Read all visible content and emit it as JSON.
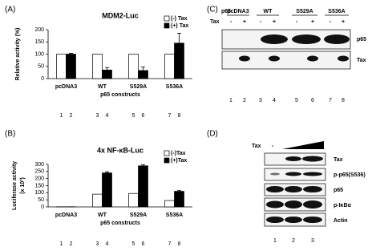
{
  "chart_data": [
    {
      "type": "bar",
      "panel_label": "(A)",
      "title": "MDM2-Luc",
      "y_label": "Relative activity (%)",
      "x_label": "p65 constructs",
      "categories": [
        "pcDNA3",
        "WT",
        "S529A",
        "S536A"
      ],
      "series": [
        {
          "name": "(-) Tax",
          "color": "#ffffff",
          "values": [
            100,
            100,
            100,
            100
          ]
        },
        {
          "name": "(+) Tax",
          "color": "#000000",
          "values": [
            100,
            35,
            33,
            145
          ],
          "errors": [
            3,
            10,
            15,
            40
          ]
        }
      ],
      "ylim": [
        0,
        200
      ],
      "yticks": [
        0,
        50,
        100,
        150,
        200
      ],
      "legend": "upper right",
      "lane_numbers": [
        1,
        2,
        3,
        4,
        5,
        6,
        7,
        8
      ]
    },
    {
      "type": "bar",
      "panel_label": "(B)",
      "title": "4x NF-κB-Luc",
      "y_label": "Luciferase activity",
      "y_label_unit": "(x 10³)",
      "x_label": "p65 constructs",
      "categories": [
        "pcDNA3",
        "WT",
        "S529A",
        "S536A"
      ],
      "series": [
        {
          "name": "(-)Tax",
          "color": "#ffffff",
          "values": [
            1,
            90,
            95,
            45
          ]
        },
        {
          "name": "(+)Tax",
          "color": "#000000",
          "values": [
            1,
            240,
            290,
            110
          ],
          "errors": [
            0,
            8,
            8,
            6
          ]
        }
      ],
      "ylim": [
        0,
        300
      ],
      "yticks": [
        0,
        50,
        100,
        150,
        200,
        250,
        300
      ],
      "legend": "upper right",
      "lane_numbers": [
        1,
        2,
        3,
        4,
        5,
        6,
        7,
        8
      ]
    }
  ],
  "blot_c": {
    "panel_label": "(C)",
    "header_label": "p65",
    "groups": [
      "pcDNA3",
      "WT",
      "S529A",
      "S536A"
    ],
    "tax_label": "Tax",
    "tax_signs": [
      "-",
      "+",
      "-",
      "+",
      "-",
      "+",
      "-",
      "+"
    ],
    "rows": [
      "p65",
      "Tax"
    ],
    "lanes": [
      1,
      2,
      3,
      4,
      5,
      6,
      7,
      8
    ]
  },
  "blot_d": {
    "panel_label": "(D)",
    "treatment_label": "Tax",
    "treatment_start": "-",
    "rows": [
      "Tax",
      "p-p65(S536)",
      "p65",
      "p-IκBα",
      "Actin"
    ],
    "lanes": [
      1,
      2,
      3
    ]
  }
}
